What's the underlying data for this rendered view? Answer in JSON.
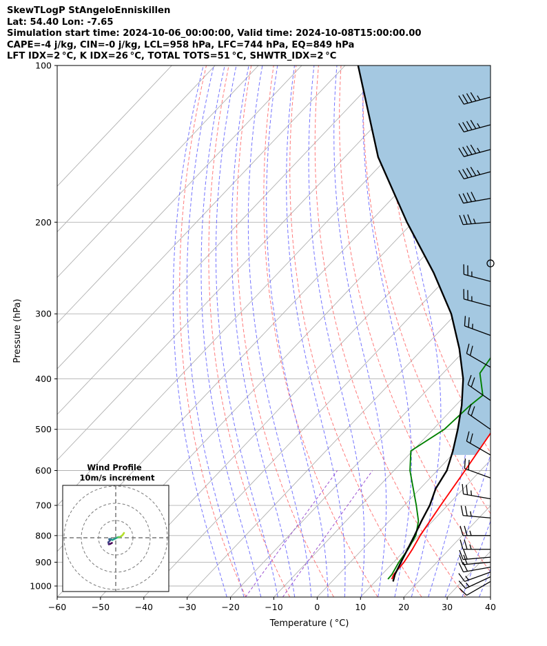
{
  "header": {
    "line1": "SkewTLogP StAngeloEnniskillen",
    "line2": "Lat: 54.40   Lon: -7.65",
    "line3": "Simulation start time: 2024-10-06_00:00:00, Valid time: 2024-10-08T15:00:00.00",
    "line4": "CAPE=-4 j/kg, CIN=-0 j/kg, LCL=958 hPa, LFC=744 hPa, EQ=849 hPa",
    "line5": "LFT IDX=2 °C, K IDX=26 °C, TOTAL TOTS=51 °C, SHWTR_IDX=2 °C"
  },
  "chart_data": {
    "type": "line",
    "subtype": "skew-T log-p",
    "xlabel": "Temperature ( °C)",
    "ylabel": "Pressure (hPa)",
    "xlim": [
      -60,
      40
    ],
    "ylim": [
      1050,
      100
    ],
    "yscale": "log",
    "x_ticks": [
      -60,
      -50,
      -40,
      -30,
      -20,
      -10,
      0,
      10,
      20,
      30,
      40
    ],
    "x_tick_labels": [
      "−60",
      "−50",
      "−40",
      "−30",
      "−20",
      "−10",
      "0",
      "10",
      "20",
      "30",
      "40"
    ],
    "y_ticks": [
      1000,
      900,
      800,
      700,
      600,
      500,
      400,
      300,
      200,
      100
    ],
    "y_tick_labels": [
      "1000",
      "900",
      "800",
      "700",
      "600",
      "500",
      "400",
      "300",
      "200",
      "100"
    ],
    "grid": true,
    "colors": {
      "temperature": "#ff0000",
      "dewpoint": "#008000",
      "parcel": "#000000",
      "cape_fill": "#a4c8e1",
      "dry_adiabat": "#ff6b6b",
      "moist_adiabat": "#5b5bff",
      "mixing_ratio": "#9a4fd0",
      "isotherm": "#b0b0b0"
    },
    "series": [
      {
        "role": "temperature",
        "points": [
          [
            13.3,
            970
          ],
          [
            12.7,
            950
          ],
          [
            12.4,
            900
          ],
          [
            11.5,
            850
          ],
          [
            10.3,
            800
          ],
          [
            8.4,
            700
          ],
          [
            6.4,
            600
          ],
          [
            3.9,
            500
          ],
          [
            1.0,
            450
          ],
          [
            -4.1,
            400
          ],
          [
            -8.8,
            350
          ],
          [
            -13.5,
            300
          ],
          [
            -14.3,
            280
          ],
          [
            -14.7,
            260
          ],
          [
            -16.7,
            250
          ],
          [
            -19.8,
            230
          ],
          [
            -24.7,
            210
          ],
          [
            -28.3,
            200
          ],
          [
            -37.6,
            170
          ],
          [
            -45.1,
            150
          ],
          [
            -50.6,
            135
          ],
          [
            -56.3,
            120
          ],
          [
            -61.6,
            110
          ],
          [
            -66.6,
            100
          ]
        ]
      },
      {
        "role": "dewpoint",
        "points": [
          [
            12.4,
            970
          ],
          [
            12.3,
            950
          ],
          [
            11.2,
            900
          ],
          [
            10.5,
            850
          ],
          [
            9.3,
            800
          ],
          [
            6.7,
            750
          ],
          [
            2.8,
            700
          ],
          [
            -6.3,
            600
          ],
          [
            -10.4,
            550
          ],
          [
            -7.4,
            500
          ],
          [
            -6.7,
            450
          ],
          [
            -6.0,
            430
          ],
          [
            -11.5,
            390
          ],
          [
            -12.9,
            350
          ],
          [
            -16.3,
            320
          ],
          [
            -17.5,
            300
          ],
          [
            -18.6,
            280
          ],
          [
            -18.8,
            260
          ],
          [
            -24.5,
            230
          ],
          [
            -30.8,
            210
          ],
          [
            -34.4,
            190
          ],
          [
            -38.8,
            175
          ],
          [
            -44.8,
            160
          ],
          [
            -50.0,
            145
          ],
          [
            -61.2,
            120
          ],
          [
            -70.7,
            100
          ]
        ]
      },
      {
        "role": "parcel",
        "points": [
          [
            14.1,
            980
          ],
          [
            13.0,
            950
          ],
          [
            11.7,
            900
          ],
          [
            10.4,
            850
          ],
          [
            9.0,
            800
          ],
          [
            7.4,
            750
          ],
          [
            5.9,
            700
          ],
          [
            3.6,
            650
          ],
          [
            2.2,
            600
          ],
          [
            -0.7,
            550
          ],
          [
            -4.3,
            500
          ],
          [
            -8.6,
            450
          ],
          [
            -14.1,
            400
          ],
          [
            -21.6,
            350
          ],
          [
            -31.1,
            300
          ],
          [
            -44.2,
            250
          ],
          [
            -61.4,
            200
          ],
          [
            -82.3,
            150
          ],
          [
            -107.0,
            100
          ]
        ]
      }
    ],
    "cape_region": "shaded between parcel and temperature, 550 hPa to 100 hPa",
    "wind_barbs": {
      "side": "right",
      "pressures_hPa": [
        980,
        960,
        940,
        920,
        900,
        880,
        850,
        800,
        740,
        680,
        620,
        560,
        500,
        440,
        380,
        330,
        290,
        260,
        240,
        200,
        180,
        160,
        145,
        130,
        115
      ],
      "speeds_kt": [
        10,
        15,
        15,
        20,
        20,
        20,
        25,
        25,
        25,
        25,
        20,
        20,
        20,
        20,
        20,
        25,
        25,
        25,
        0,
        35,
        40,
        45,
        45,
        45,
        45
      ],
      "directions_deg": [
        240,
        245,
        250,
        260,
        265,
        265,
        270,
        270,
        275,
        280,
        290,
        300,
        305,
        305,
        300,
        290,
        285,
        285,
        0,
        265,
        260,
        255,
        255,
        255,
        255
      ]
    },
    "inset": {
      "title_line1": "Wind Profile",
      "title_line2": "10m/s increment",
      "type": "hodograph",
      "ring_step_ms": 10,
      "points_uv": [
        [
          -2.2,
          -3.0
        ],
        [
          -3.3,
          -3.6
        ],
        [
          -4.0,
          -3.8
        ],
        [
          -4.3,
          -2.6
        ],
        [
          -3.3,
          -1.6
        ],
        [
          -3.8,
          -0.8
        ],
        [
          -3.0,
          -0.7
        ],
        [
          -2.0,
          -1.3
        ],
        [
          -0.3,
          -0.5
        ],
        [
          0.8,
          0.1
        ],
        [
          1.6,
          0.4
        ],
        [
          2.2,
          0.3
        ],
        [
          3.2,
          0.9
        ],
        [
          4.1,
          1.7
        ],
        [
          4.8,
          2.8
        ]
      ]
    }
  }
}
